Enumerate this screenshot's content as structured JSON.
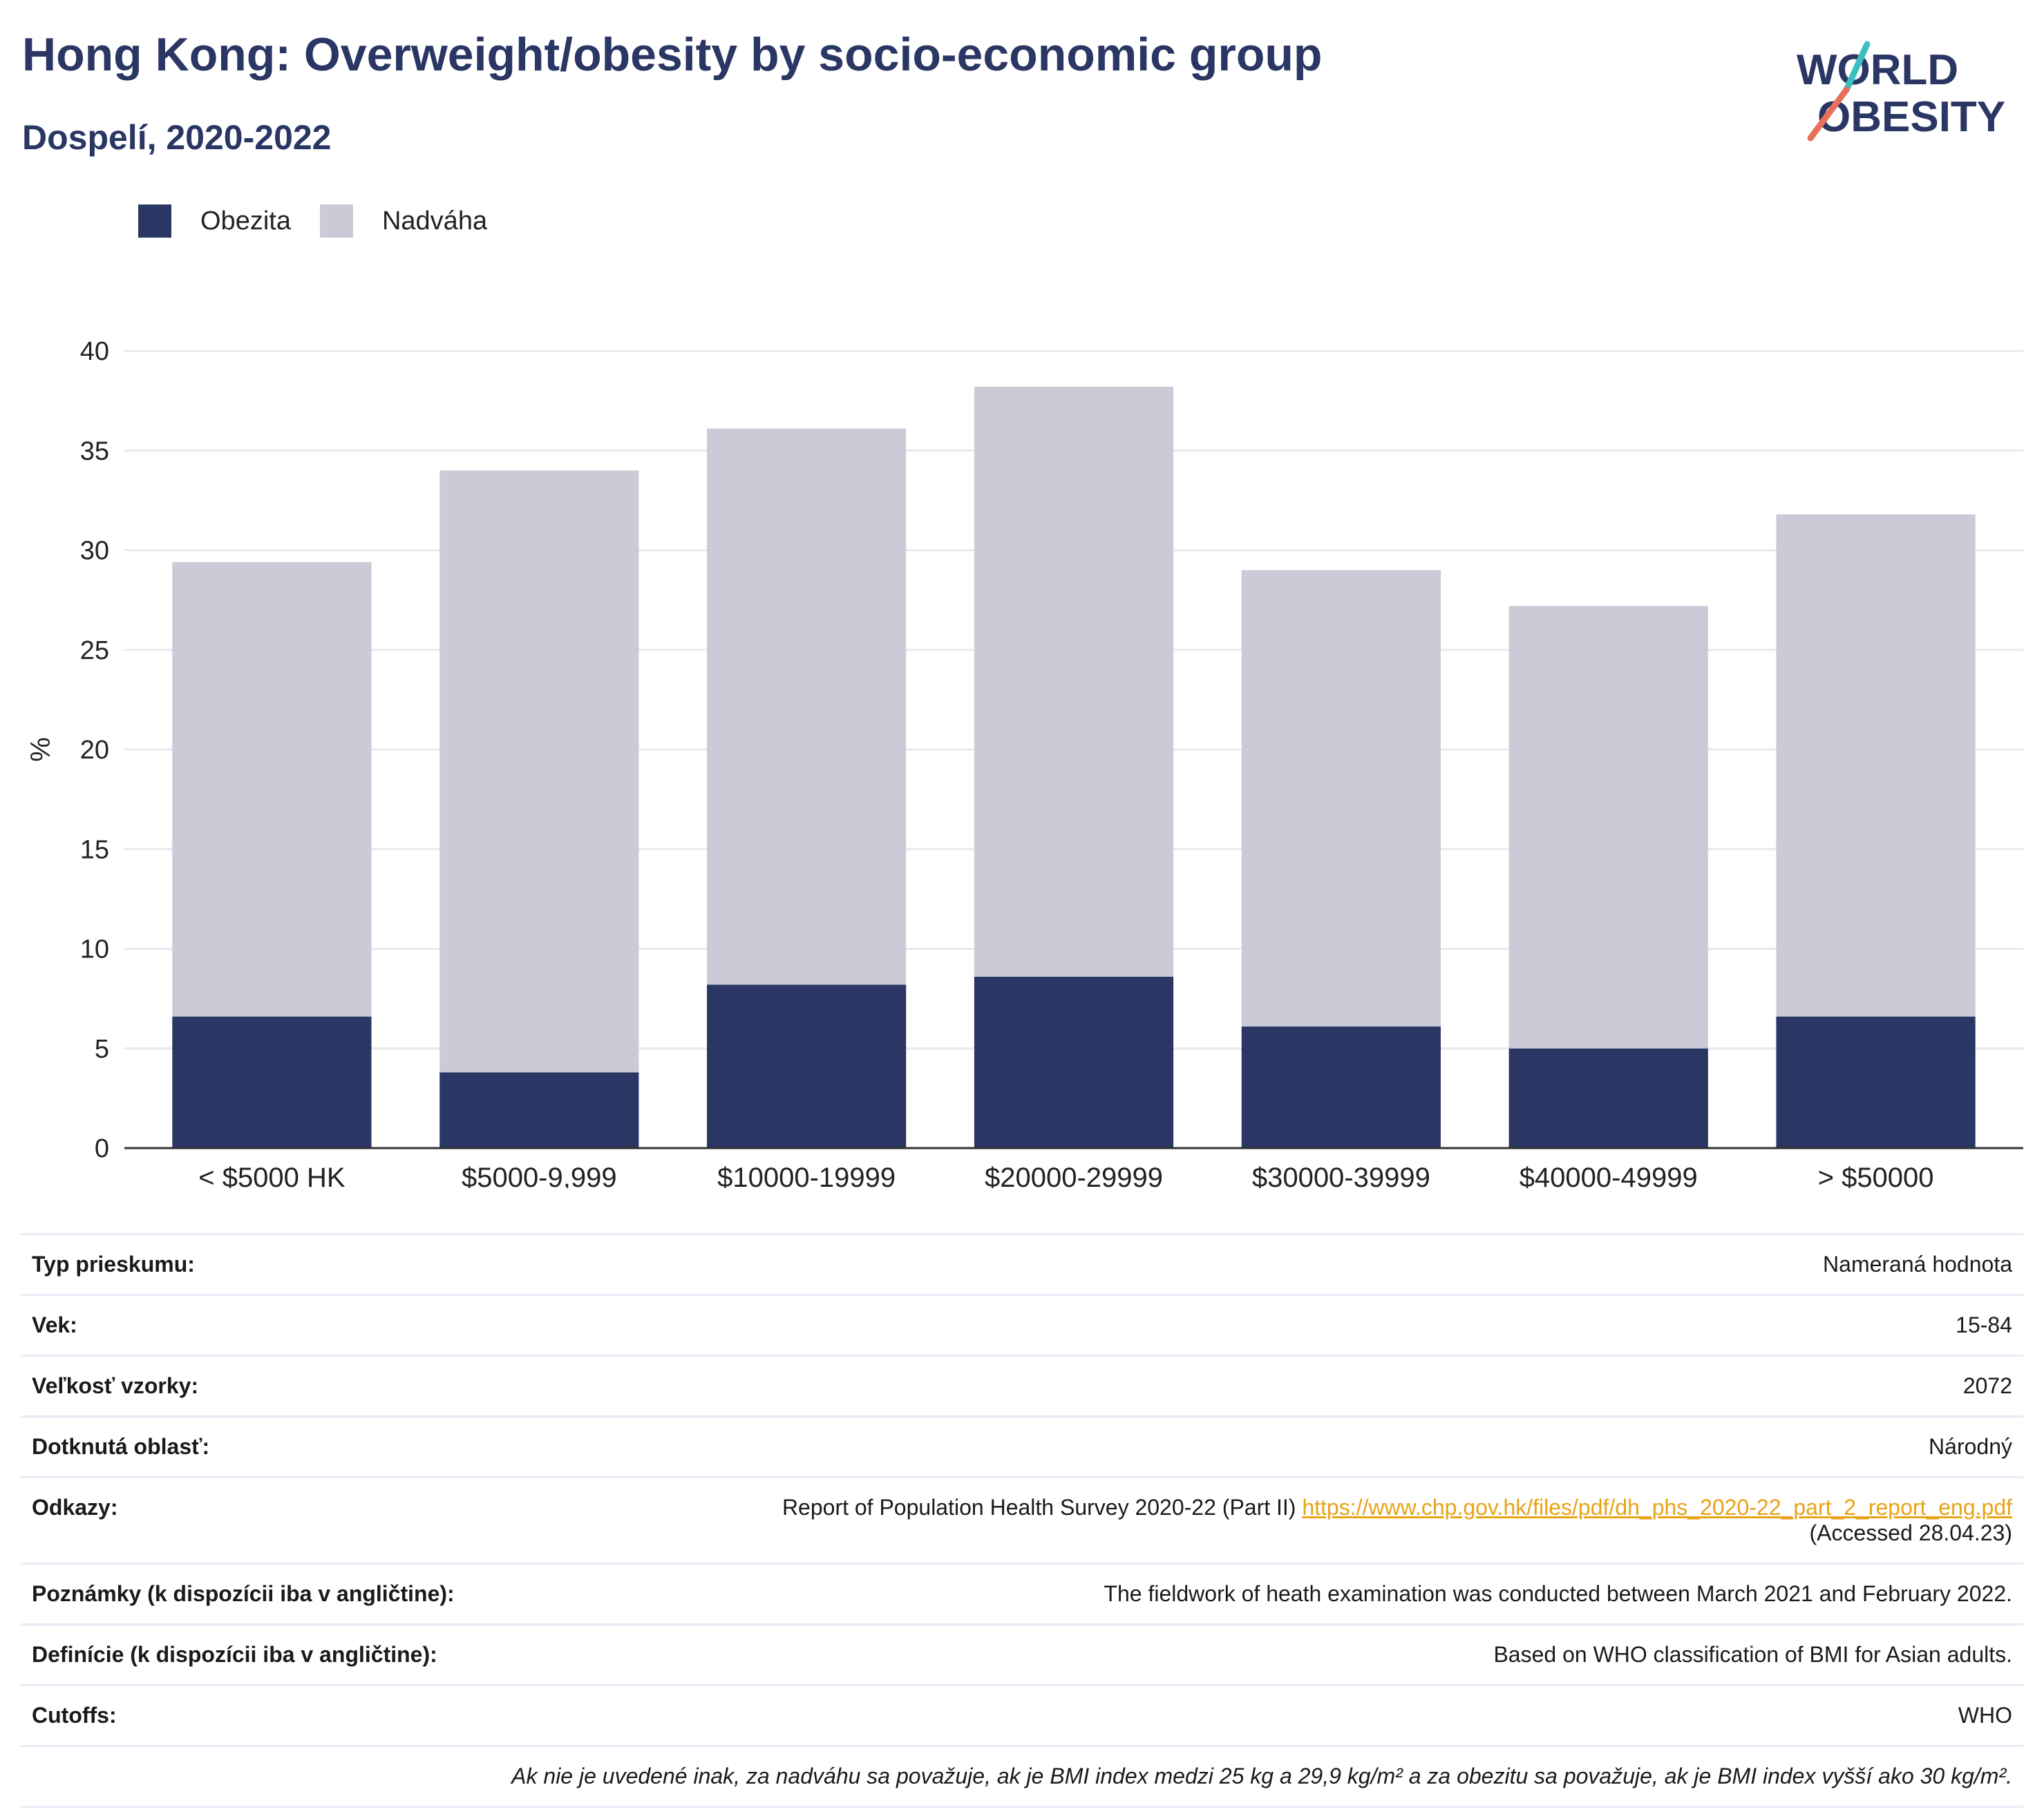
{
  "header": {
    "title": "Hong Kong: Overweight/obesity by socio-economic group",
    "subtitle": "Dospelí, 2020-2022",
    "logo_line1": "WORLD",
    "logo_line2": "OBESITY"
  },
  "legend": [
    {
      "label": "Obezita",
      "color": "#2a3663"
    },
    {
      "label": "Nadváha",
      "color": "#cacbd7"
    }
  ],
  "chart_data": {
    "type": "bar",
    "stacked": true,
    "categories": [
      "< $5000 HK",
      "$5000-9,999",
      "$10000-19999",
      "$20000-29999",
      "$30000-39999",
      "$40000-49999",
      "> $50000"
    ],
    "series": [
      {
        "name": "Obezita",
        "color": "#2a3663",
        "values": [
          6.6,
          3.8,
          8.2,
          8.6,
          6.1,
          5.0,
          6.6
        ]
      },
      {
        "name": "Nadváha",
        "color": "#cacbd7",
        "values": [
          22.8,
          30.2,
          27.9,
          29.6,
          22.9,
          22.2,
          25.2
        ]
      }
    ],
    "ylabel": "%",
    "ylim": [
      0,
      40
    ],
    "yticks": [
      0,
      5,
      10,
      15,
      20,
      25,
      30,
      35,
      40
    ],
    "grid": true
  },
  "meta": {
    "survey_type": {
      "key": "Typ prieskumu:",
      "value": "Nameraná hodnota"
    },
    "age": {
      "key": "Vek:",
      "value": "15-84"
    },
    "sample_size": {
      "key": "Veľkosť vzorky:",
      "value": "2072"
    },
    "area": {
      "key": "Dotknutá oblasť:",
      "value": "Národný"
    },
    "references": {
      "key": "Odkazy:",
      "text": "Report of Population Health Survey 2020-22 (Part II)",
      "link": "https://www.chp.gov.hk/files/pdf/dh_phs_2020-22_part_2_report_eng.pdf",
      "accessed": "(Accessed 28.04.23)"
    },
    "notes": {
      "key": "Poznámky (k dispozícii iba v angličtine):",
      "value": "The fieldwork of heath examination was conducted between March 2021 and February 2022."
    },
    "definitions": {
      "key": "Definície (k dispozícii iba v angličtine):",
      "value": "Based on WHO classification of BMI for Asian adults."
    },
    "cutoffs": {
      "key": "Cutoffs:",
      "value": "WHO"
    },
    "footnote": "Ak nie je uvedené inak, za nadváhu sa považuje, ak je BMI index medzi 25 kg a 29,9 kg/m² a za obezitu sa považuje, ak je BMI index vyšší ako 30 kg/m²."
  }
}
